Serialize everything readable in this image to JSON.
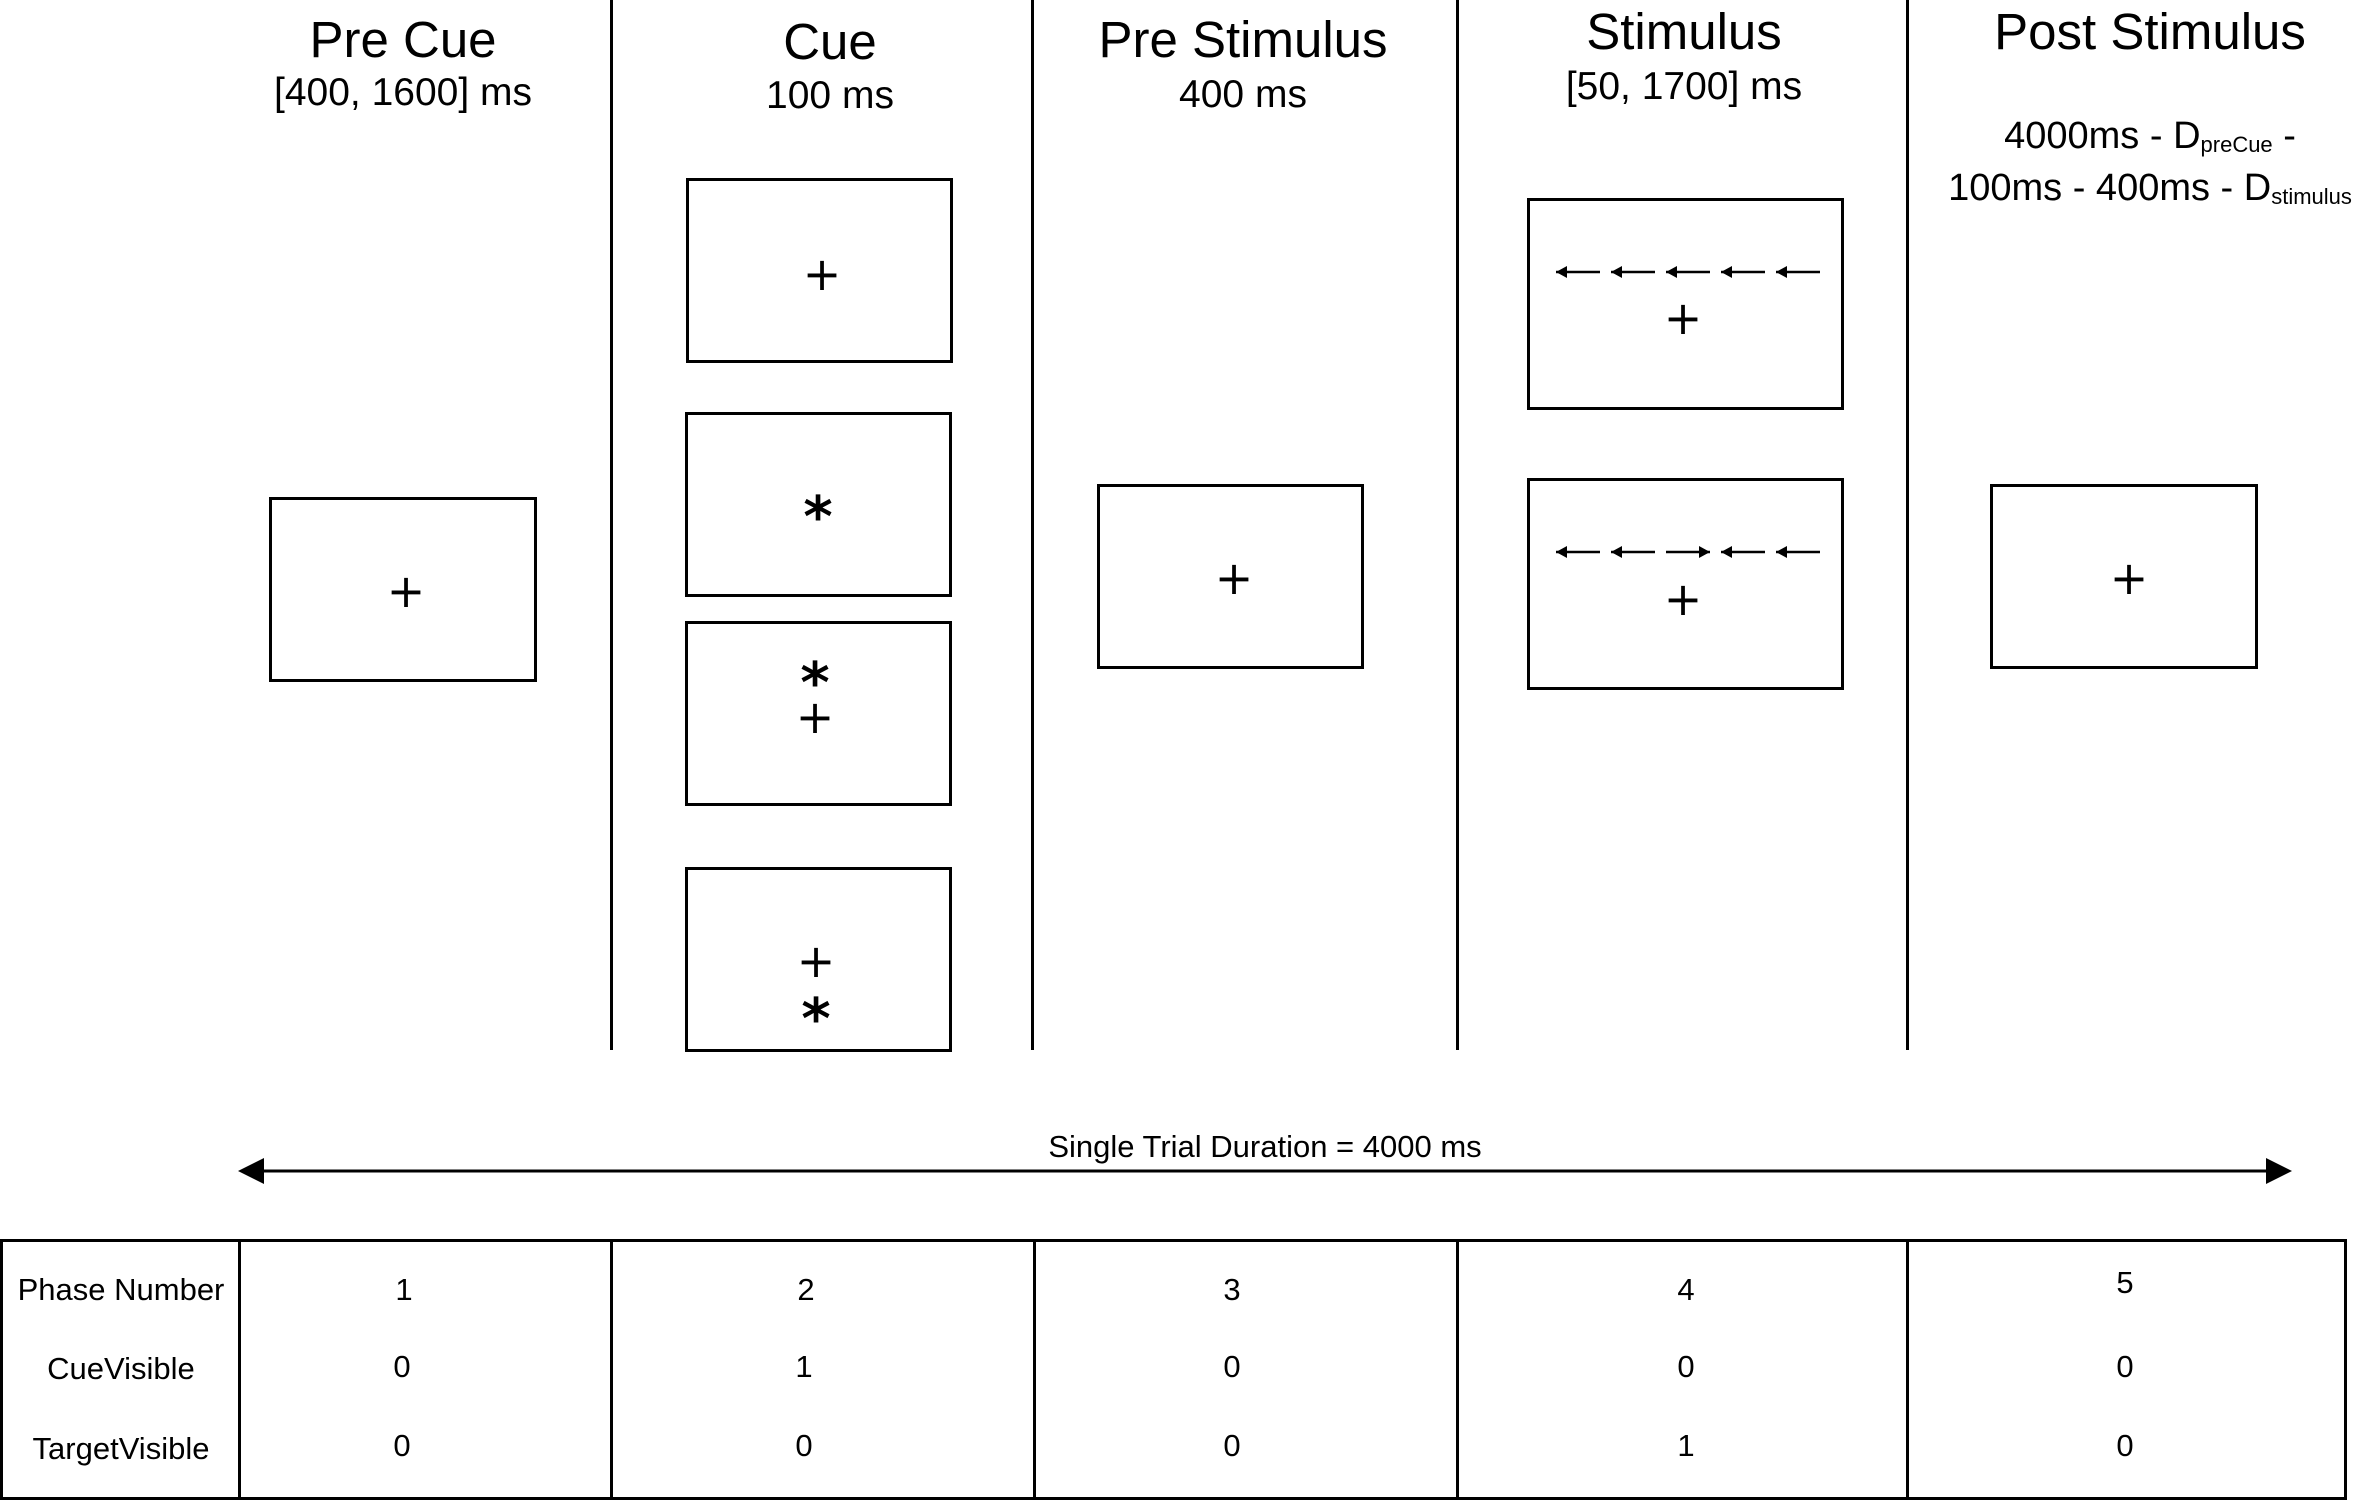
{
  "phases": [
    {
      "title": "Pre Cue",
      "duration": "[400, 1600] ms"
    },
    {
      "title": "Cue",
      "duration": "100 ms"
    },
    {
      "title": "Pre Stimulus",
      "duration": "400 ms"
    },
    {
      "title": "Stimulus",
      "duration": "[50, 1700] ms"
    },
    {
      "title": "Post Stimulus",
      "duration_line1_a": "4000ms - D",
      "duration_line1_sub": "preCue",
      "duration_line1_b": " -",
      "duration_line2_a": "100ms - 400ms - D",
      "duration_line2_sub": "stimulus"
    }
  ],
  "symbols": {
    "fixation": "+",
    "cue": "*"
  },
  "stimulus_arrows": {
    "congruent": [
      "left",
      "left",
      "left",
      "left",
      "left"
    ],
    "incongruent": [
      "left",
      "left",
      "right",
      "left",
      "left"
    ]
  },
  "trial_span_label": "Single Trial Duration = 4000 ms",
  "table": {
    "row_labels": [
      "Phase Number",
      "CueVisible",
      "TargetVisible"
    ],
    "columns": [
      [
        "1",
        "0",
        "0"
      ],
      [
        "2",
        "1",
        "0"
      ],
      [
        "3",
        "0",
        "0"
      ],
      [
        "4",
        "0",
        "1"
      ],
      [
        "5",
        "0",
        "0"
      ]
    ]
  }
}
